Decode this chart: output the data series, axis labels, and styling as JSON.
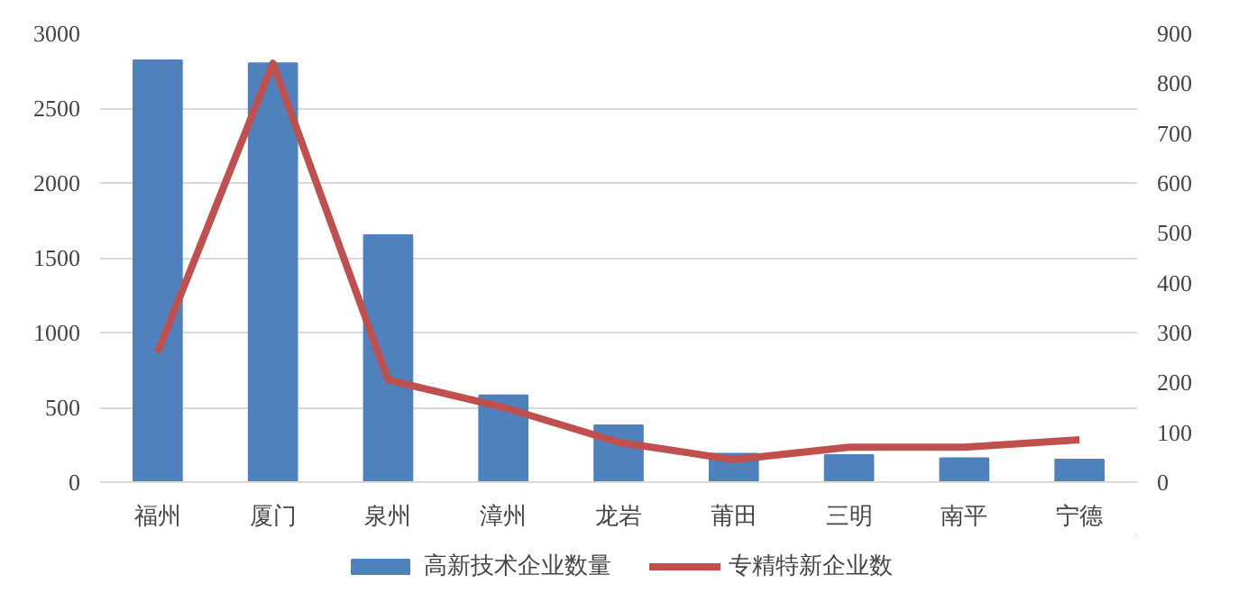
{
  "chart_data": {
    "type": "bar",
    "categories": [
      "福州",
      "厦门",
      "泉州",
      "漳州",
      "龙岩",
      "莆田",
      "三明",
      "南平",
      "宁德"
    ],
    "series": [
      {
        "name": "高新技术企业数量",
        "color": "#4f81bd",
        "values": [
          2820,
          2800,
          1650,
          580,
          380,
          190,
          180,
          160,
          150
        ]
      },
      {
        "name": "专精特新企业数",
        "type": "line",
        "axis": "y2",
        "color": "#c0504d",
        "values": [
          260,
          840,
          205,
          150,
          80,
          45,
          70,
          70,
          85
        ]
      }
    ],
    "ylim": [
      0,
      3000
    ],
    "yticks": [
      0,
      500,
      1000,
      1500,
      2000,
      2500,
      3000
    ],
    "y2lim": [
      0,
      900
    ],
    "y2ticks": [
      0,
      100,
      200,
      300,
      400,
      500,
      600,
      700,
      800,
      900
    ],
    "grid": "y",
    "legend": "bottom",
    "marker": "none",
    "line_style": "solid"
  }
}
